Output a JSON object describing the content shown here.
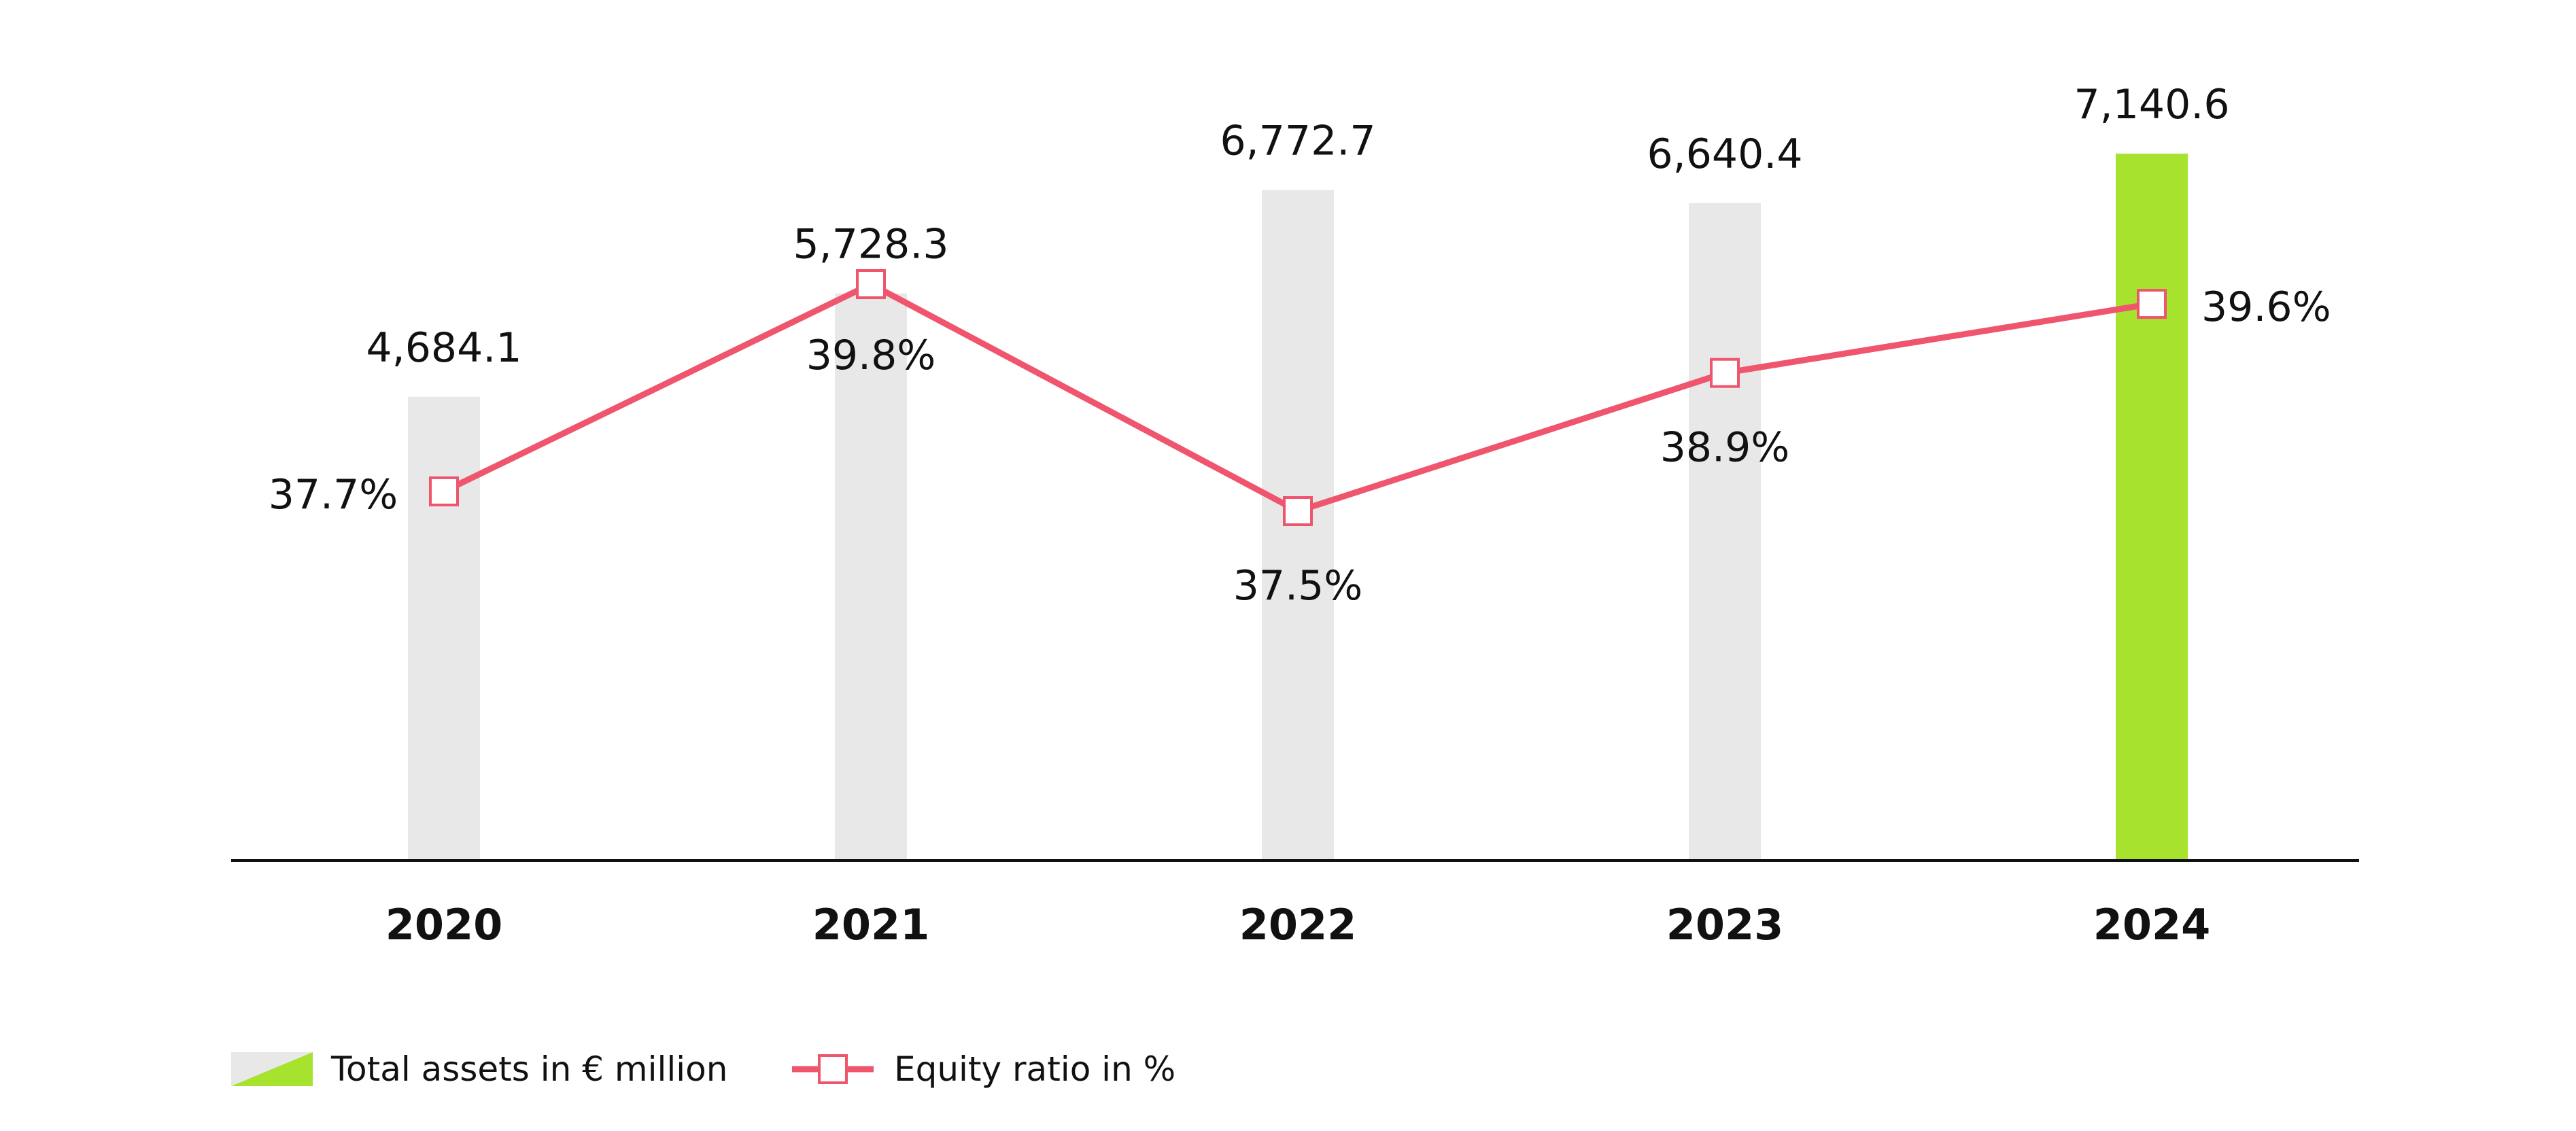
{
  "chart_data": {
    "type": "bar",
    "categories": [
      "2020",
      "2021",
      "2022",
      "2023",
      "2024"
    ],
    "series": [
      {
        "name": "Total assets in € million",
        "type": "bar",
        "values": [
          4684.1,
          5728.3,
          6772.7,
          6640.4,
          7140.6
        ],
        "labels": [
          "4,684.1",
          "5,728.3",
          "6,772.7",
          "6,640.4",
          "7,140.6"
        ]
      },
      {
        "name": "Equity ratio in %",
        "type": "line",
        "values": [
          37.7,
          39.8,
          37.5,
          38.9,
          39.6
        ],
        "labels": [
          "37.7%",
          "39.8%",
          "37.5%",
          "38.9%",
          "39.6%"
        ]
      }
    ],
    "bar_ylim": [
      0,
      7400
    ],
    "line_ylim": [
      36.8,
      40.2
    ],
    "grid": false,
    "legend_position": "bottom-left",
    "colors": {
      "bar": "#e8e8e8",
      "bar_highlight": "#a6e22e",
      "line": "#f0556e",
      "marker_fill": "#ffffff",
      "axis": "#111111"
    }
  }
}
